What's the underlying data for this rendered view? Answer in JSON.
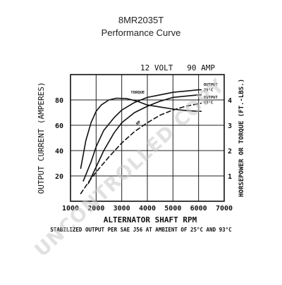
{
  "header": {
    "title": "8MR2035T",
    "subtitle": "Performance Curve"
  },
  "watermark": "UNCONTROLLED COPY",
  "chart_data": {
    "type": "line",
    "title": "8MR2035T",
    "subtitle": "Performance Curve",
    "inner_title": "12 VOLT   90 AMP",
    "xlabel": "ALTERNATOR SHAFT RPM",
    "ylabel_left": "OUTPUT CURRENT (AMPERES)",
    "ylabel_right": "HORSEPOWER OR TORQUE (FT.-LBS.)",
    "footnote": "STABILIZED OUTPUT PER SAE J56 AT AMBIENT OF 25°C AND 93°C",
    "xlim": [
      1000,
      7000
    ],
    "ylim_left": [
      0,
      100
    ],
    "ylim_right": [
      0,
      5
    ],
    "grid": true,
    "x_ticks": [
      {
        "value": 1000,
        "label": "1000"
      },
      {
        "value": 2000,
        "label": "2000"
      },
      {
        "value": 3000,
        "label": "3000"
      },
      {
        "value": 4000,
        "label": "4000"
      },
      {
        "value": 5000,
        "label": "5000"
      },
      {
        "value": 6000,
        "label": "6000"
      },
      {
        "value": 7000,
        "label": "7000"
      }
    ],
    "y_ticks_left": [
      {
        "value": 20,
        "label": "20"
      },
      {
        "value": 40,
        "label": "40"
      },
      {
        "value": 60,
        "label": "60"
      },
      {
        "value": 80,
        "label": "80"
      }
    ],
    "y_ticks_right": [
      {
        "value": 1,
        "label": "1"
      },
      {
        "value": 2,
        "label": "2"
      },
      {
        "value": 3,
        "label": "3"
      },
      {
        "value": 4,
        "label": "4"
      }
    ],
    "series": [
      {
        "name": "OUTPUT 25°C",
        "axis": "left",
        "style": "solid",
        "x": [
          1500,
          1800,
          2000,
          2300,
          2700,
          3000,
          3500,
          4000,
          4500,
          5000,
          5500,
          6000,
          6100
        ],
        "y": [
          16,
          31,
          43,
          56,
          66,
          72,
          78,
          82,
          84,
          86,
          87,
          88,
          88
        ]
      },
      {
        "name": "OUTPUT 93°C",
        "axis": "left",
        "style": "solid",
        "x": [
          1700,
          2000,
          2300,
          2700,
          3000,
          3500,
          4000,
          4500,
          5000,
          5500,
          6000,
          6100
        ],
        "y": [
          14,
          27,
          40,
          54,
          62,
          70,
          75,
          79,
          82,
          83,
          84,
          84
        ]
      },
      {
        "name": "TORQUE",
        "axis": "right",
        "style": "solid",
        "x": [
          1400,
          1600,
          1800,
          2000,
          2200,
          2500,
          2800,
          3200,
          3600,
          4000,
          4500,
          5000,
          5500,
          6000,
          6100
        ],
        "y": [
          1.3,
          2.4,
          3.1,
          3.55,
          3.8,
          4.0,
          4.07,
          4.05,
          3.95,
          3.8,
          3.72,
          3.64,
          3.58,
          3.55,
          3.55
        ]
      },
      {
        "name": "HP",
        "axis": "right",
        "style": "dashed",
        "x": [
          1400,
          1700,
          2000,
          2500,
          3000,
          3500,
          4000,
          4500,
          5000,
          5500,
          6000,
          6100
        ],
        "y": [
          0.3,
          0.75,
          1.15,
          1.75,
          2.3,
          2.75,
          3.1,
          3.4,
          3.6,
          3.75,
          3.85,
          3.87
        ]
      }
    ],
    "annotations": [
      {
        "text": "TORQUE",
        "x": 3350,
        "y": 4.25,
        "axis": "right"
      },
      {
        "text": "HP",
        "x": 3600,
        "y": 3.0,
        "axis": "right"
      },
      {
        "text": "OUTPUT",
        "x": 6200,
        "y": 4.55,
        "axis": "right"
      },
      {
        "text": "25°C",
        "x": 6200,
        "y": 4.35,
        "axis": "right"
      },
      {
        "text": "OUTPUT",
        "x": 6200,
        "y": 4.05,
        "axis": "right"
      },
      {
        "text": "93°C",
        "x": 6200,
        "y": 3.85,
        "axis": "right"
      }
    ]
  }
}
